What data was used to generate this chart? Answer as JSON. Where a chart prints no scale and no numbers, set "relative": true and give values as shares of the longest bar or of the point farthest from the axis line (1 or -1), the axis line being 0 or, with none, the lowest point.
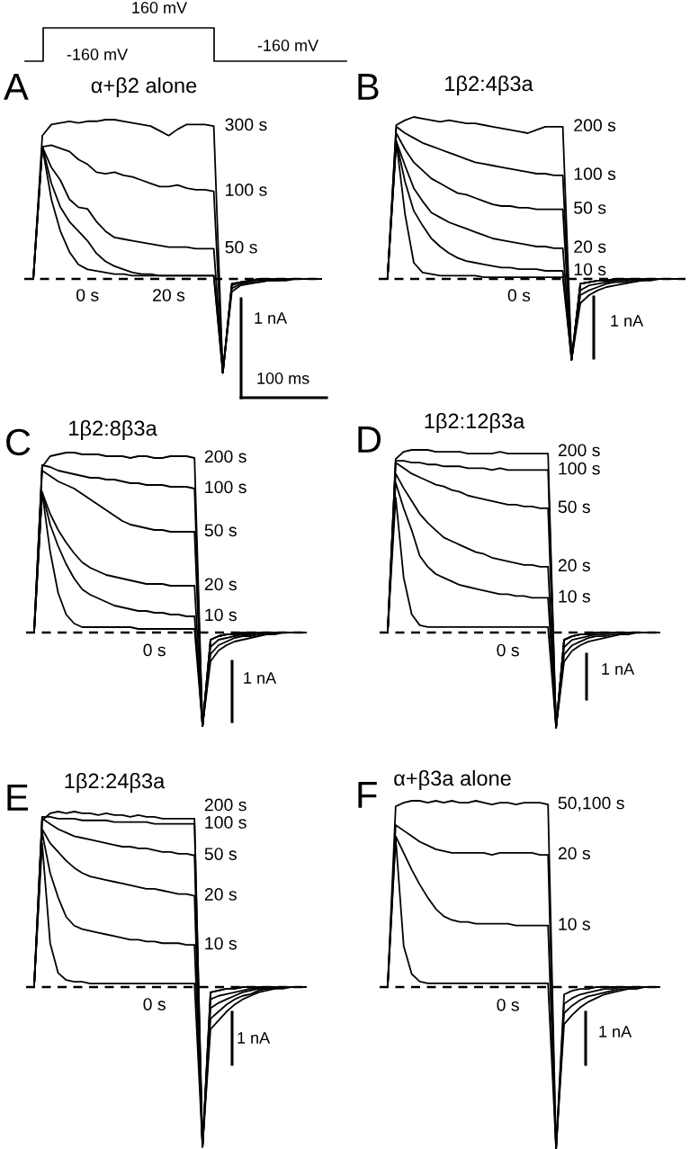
{
  "chart_data": [
    {
      "type": "line",
      "title": "α+β2 alone",
      "relative": true,
      "categories": [
        null,
        null,
        null,
        null,
        null,
        null,
        null,
        null,
        null,
        null,
        null,
        null,
        null,
        null,
        null,
        null,
        null,
        null,
        null,
        null,
        null,
        null,
        null,
        null,
        null,
        null,
        null,
        null,
        null,
        null,
        null,
        null,
        null,
        null
      ],
      "annotations": [
        "A",
        "160 mV",
        "-160 mV",
        "-160 mV",
        "1 nA",
        "100 ms"
      ],
      "ref_lines": [
        {
          "axis": "y",
          "value": 0,
          "line_style": "dashed",
          "color": "#000000"
        }
      ],
      "series": [
        {
          "name": "300 s",
          "color": "#000000",
          "values": [
            0,
            0,
            0.9,
            0.97,
            0.98,
            0.99,
            0.98,
            0.99,
            0.99,
            1.0,
            1.0,
            0.99,
            0.98,
            0.97,
            0.96,
            0.93,
            0.9,
            0.94,
            0.97,
            0.97,
            0.97,
            0.96,
            -0.59,
            -0.08,
            -0.04,
            -0.03,
            -0.02,
            -0.01,
            -0.01,
            -0.01,
            0,
            0,
            0,
            0
          ]
        },
        {
          "name": "100 s",
          "color": "#000000",
          "values": [
            0,
            0,
            0.83,
            0.84,
            0.82,
            0.8,
            0.75,
            0.72,
            0.67,
            0.66,
            0.67,
            0.65,
            0.64,
            0.62,
            0.6,
            0.58,
            0.58,
            0.59,
            0.57,
            0.56,
            0.56,
            0.55,
            -0.59,
            -0.06,
            -0.03,
            -0.02,
            -0.02,
            -0.01,
            -0.01,
            0,
            0,
            0,
            0,
            0
          ]
        },
        {
          "name": "50 s",
          "color": "#000000",
          "values": [
            0,
            0,
            0.83,
            0.7,
            0.62,
            0.5,
            0.45,
            0.44,
            0.36,
            0.3,
            0.26,
            0.25,
            0.24,
            0.23,
            0.22,
            0.21,
            0.2,
            0.2,
            0.2,
            0.19,
            0.19,
            0.19,
            -0.59,
            -0.04,
            -0.02,
            -0.01,
            -0.01,
            -0.01,
            0,
            0,
            0,
            0,
            0,
            0
          ]
        },
        {
          "name": "20 s",
          "color": "#000000",
          "values": [
            0,
            0,
            0.83,
            0.6,
            0.45,
            0.36,
            0.3,
            0.24,
            0.16,
            0.11,
            0.08,
            0.06,
            0.04,
            0.03,
            0.03,
            0.02,
            0.02,
            0.02,
            0.02,
            0.02,
            0.02,
            0.02,
            -0.59,
            -0.03,
            -0.02,
            -0.01,
            0,
            0,
            0,
            0,
            0,
            0,
            0,
            0
          ]
        },
        {
          "name": "0 s",
          "color": "#000000",
          "values": [
            0,
            0,
            0.83,
            0.5,
            0.3,
            0.17,
            0.09,
            0.06,
            0.05,
            0.04,
            0.03,
            0.03,
            0.02,
            0.02,
            0.02,
            0.02,
            0.02,
            0.02,
            0.02,
            0.02,
            0.02,
            0.02,
            -0.59,
            -0.03,
            -0.02,
            -0.01,
            0,
            0,
            0,
            0,
            0,
            0,
            0,
            0
          ]
        }
      ]
    },
    {
      "type": "line",
      "title": "1β2:4β3a",
      "relative": true,
      "categories": [
        null,
        null,
        null,
        null,
        null,
        null,
        null,
        null,
        null,
        null,
        null,
        null,
        null,
        null,
        null,
        null,
        null,
        null,
        null,
        null,
        null,
        null,
        null,
        null,
        null,
        null,
        null,
        null,
        null,
        null,
        null,
        null,
        null,
        null,
        null,
        null
      ],
      "annotations": [
        "B",
        "1 nA"
      ],
      "ref_lines": [
        {
          "axis": "y",
          "value": 0,
          "line_style": "dashed",
          "color": "#000000"
        }
      ],
      "series": [
        {
          "name": "200 s",
          "color": "#000000",
          "values": [
            0,
            0,
            0.95,
            0.98,
            1.0,
            0.99,
            0.98,
            0.97,
            0.98,
            0.97,
            0.96,
            0.96,
            0.95,
            0.94,
            0.93,
            0.92,
            0.91,
            0.9,
            0.92,
            0.94,
            0.94,
            0.94,
            -0.5,
            -0.15,
            -0.1,
            -0.07,
            -0.05,
            -0.04,
            -0.03,
            -0.02,
            -0.01,
            -0.01,
            0,
            0,
            0,
            0
          ]
        },
        {
          "name": "100 s",
          "color": "#000000",
          "values": [
            0,
            0,
            0.94,
            0.9,
            0.87,
            0.84,
            0.82,
            0.8,
            0.78,
            0.76,
            0.74,
            0.72,
            0.71,
            0.7,
            0.69,
            0.68,
            0.67,
            0.66,
            0.65,
            0.65,
            0.64,
            0.64,
            -0.5,
            -0.1,
            -0.07,
            -0.05,
            -0.03,
            -0.02,
            -0.02,
            -0.01,
            -0.01,
            0,
            0,
            0,
            0,
            0
          ]
        },
        {
          "name": "50 s",
          "color": "#000000",
          "values": [
            0,
            0,
            0.9,
            0.8,
            0.72,
            0.67,
            0.62,
            0.59,
            0.56,
            0.53,
            0.52,
            0.5,
            0.48,
            0.46,
            0.45,
            0.45,
            0.44,
            0.44,
            0.43,
            0.43,
            0.43,
            0.43,
            -0.5,
            -0.07,
            -0.04,
            -0.03,
            -0.02,
            -0.01,
            -0.01,
            0,
            0,
            0,
            0,
            0,
            0,
            0
          ]
        },
        {
          "name": "20 s",
          "color": "#000000",
          "values": [
            0,
            0,
            0.85,
            0.7,
            0.56,
            0.48,
            0.41,
            0.38,
            0.35,
            0.33,
            0.31,
            0.29,
            0.27,
            0.25,
            0.24,
            0.23,
            0.22,
            0.21,
            0.2,
            0.2,
            0.19,
            0.19,
            -0.5,
            -0.03,
            -0.02,
            -0.01,
            -0.01,
            0,
            0,
            0,
            0,
            0,
            0,
            0,
            0,
            0
          ]
        },
        {
          "name": "10 s",
          "color": "#000000",
          "values": [
            0,
            0,
            0.85,
            0.6,
            0.42,
            0.33,
            0.25,
            0.2,
            0.16,
            0.13,
            0.11,
            0.1,
            0.09,
            0.08,
            0.07,
            0.07,
            0.06,
            0.06,
            0.06,
            0.05,
            0.05,
            0.05,
            -0.5,
            -0.03,
            -0.02,
            -0.01,
            -0.01,
            0,
            0,
            0,
            0,
            0,
            0,
            0,
            0,
            0
          ]
        },
        {
          "name": "0 s",
          "color": "#000000",
          "values": [
            0,
            0,
            0.85,
            0.4,
            0.1,
            0.04,
            0.03,
            0.02,
            0.02,
            0.02,
            0.02,
            0.02,
            0.01,
            0.01,
            0.01,
            0.01,
            0.01,
            0.01,
            0.01,
            0.01,
            0.01,
            0.01,
            -0.5,
            -0.03,
            -0.02,
            -0.01,
            -0.01,
            0,
            0,
            0,
            0,
            0,
            0,
            0,
            0,
            0
          ]
        }
      ]
    },
    {
      "type": "line",
      "title": "1β2:8β3a",
      "relative": true,
      "categories": [
        null,
        null,
        null,
        null,
        null,
        null,
        null,
        null,
        null,
        null,
        null,
        null,
        null,
        null,
        null,
        null,
        null,
        null,
        null,
        null,
        null,
        null,
        null,
        null,
        null,
        null,
        null,
        null,
        null,
        null,
        null,
        null,
        null,
        null,
        null,
        null
      ],
      "annotations": [
        "C",
        "1 nA"
      ],
      "ref_lines": [
        {
          "axis": "y",
          "value": 0,
          "line_style": "dashed",
          "color": "#000000"
        }
      ],
      "series": [
        {
          "name": "200 s",
          "color": "#000000",
          "values": [
            0,
            0,
            0.92,
            0.98,
            0.99,
            1,
            1,
            0.99,
            0.99,
            0.99,
            0.98,
            0.98,
            0.98,
            0.97,
            0.98,
            0.98,
            0.97,
            0.97,
            0.98,
            0.98,
            0.98,
            0.97,
            -0.52,
            -0.16,
            -0.1,
            -0.07,
            -0.05,
            -0.04,
            -0.03,
            -0.02,
            -0.01,
            -0.01,
            0,
            0,
            0,
            0
          ]
        },
        {
          "name": "100 s",
          "color": "#000000",
          "values": [
            0,
            0,
            0.93,
            0.92,
            0.9,
            0.89,
            0.88,
            0.87,
            0.86,
            0.86,
            0.85,
            0.85,
            0.84,
            0.83,
            0.83,
            0.82,
            0.82,
            0.82,
            0.81,
            0.81,
            0.81,
            0.8,
            -0.52,
            -0.12,
            -0.07,
            -0.05,
            -0.03,
            -0.02,
            -0.02,
            -0.01,
            -0.01,
            0,
            0,
            0,
            0,
            0
          ]
        },
        {
          "name": "50 s",
          "color": "#000000",
          "values": [
            0,
            0,
            0.9,
            0.87,
            0.84,
            0.82,
            0.8,
            0.77,
            0.74,
            0.71,
            0.68,
            0.65,
            0.62,
            0.6,
            0.59,
            0.58,
            0.57,
            0.57,
            0.56,
            0.56,
            0.56,
            0.56,
            -0.52,
            -0.08,
            -0.04,
            -0.03,
            -0.02,
            -0.01,
            -0.01,
            0,
            0,
            0,
            0,
            0,
            0,
            0
          ]
        },
        {
          "name": "20 s",
          "color": "#000000",
          "values": [
            0,
            0,
            0.78,
            0.66,
            0.57,
            0.5,
            0.44,
            0.39,
            0.36,
            0.34,
            0.32,
            0.31,
            0.3,
            0.29,
            0.28,
            0.27,
            0.27,
            0.27,
            0.26,
            0.26,
            0.26,
            0.26,
            -0.52,
            -0.04,
            -0.02,
            -0.01,
            -0.01,
            0,
            0,
            0,
            0,
            0,
            0,
            0,
            0,
            0
          ]
        },
        {
          "name": "10 s",
          "color": "#000000",
          "values": [
            0,
            0,
            0.78,
            0.6,
            0.48,
            0.38,
            0.3,
            0.24,
            0.21,
            0.19,
            0.17,
            0.15,
            0.14,
            0.13,
            0.12,
            0.12,
            0.11,
            0.11,
            0.1,
            0.1,
            0.09,
            0.09,
            -0.52,
            -0.04,
            -0.02,
            -0.01,
            -0.01,
            0,
            0,
            0,
            0,
            0,
            0,
            0,
            0,
            0
          ]
        },
        {
          "name": "0 s",
          "color": "#000000",
          "values": [
            0,
            0,
            0.78,
            0.45,
            0.22,
            0.1,
            0.05,
            0.03,
            0.03,
            0.03,
            0.03,
            0.03,
            0.03,
            0.03,
            0.02,
            0.02,
            0.02,
            0.02,
            0.02,
            0.02,
            0.02,
            0.02,
            -0.52,
            -0.04,
            -0.02,
            -0.01,
            -0.01,
            0,
            0,
            0,
            0,
            0,
            0,
            0,
            0,
            0
          ]
        }
      ]
    },
    {
      "type": "line",
      "title": "1β2:12β3a",
      "relative": true,
      "categories": [
        null,
        null,
        null,
        null,
        null,
        null,
        null,
        null,
        null,
        null,
        null,
        null,
        null,
        null,
        null,
        null,
        null,
        null,
        null,
        null,
        null,
        null,
        null,
        null,
        null,
        null,
        null,
        null,
        null,
        null,
        null,
        null,
        null,
        null,
        null,
        null
      ],
      "annotations": [
        "D",
        "1 nA"
      ],
      "ref_lines": [
        {
          "axis": "y",
          "value": 0,
          "line_style": "dashed",
          "color": "#000000"
        }
      ],
      "series": [
        {
          "name": "200 s",
          "color": "#000000",
          "values": [
            0,
            0,
            0.95,
            0.99,
            1,
            1,
            1,
            0.99,
            0.99,
            0.99,
            0.99,
            0.98,
            0.98,
            0.98,
            0.98,
            0.99,
            0.98,
            0.98,
            0.98,
            0.98,
            0.98,
            0.98,
            -0.52,
            -0.16,
            -0.1,
            -0.07,
            -0.05,
            -0.04,
            -0.03,
            -0.02,
            -0.01,
            -0.01,
            0,
            0,
            0,
            0
          ]
        },
        {
          "name": "100 s",
          "color": "#000000",
          "values": [
            0,
            0,
            0.94,
            0.94,
            0.93,
            0.93,
            0.92,
            0.92,
            0.91,
            0.91,
            0.91,
            0.9,
            0.9,
            0.9,
            0.89,
            0.9,
            0.89,
            0.89,
            0.89,
            0.89,
            0.89,
            0.89,
            -0.52,
            -0.12,
            -0.07,
            -0.05,
            -0.03,
            -0.02,
            -0.02,
            -0.01,
            -0.01,
            0,
            0,
            0,
            0,
            0
          ]
        },
        {
          "name": "50 s",
          "color": "#000000",
          "values": [
            0,
            0,
            0.93,
            0.9,
            0.87,
            0.85,
            0.83,
            0.81,
            0.8,
            0.78,
            0.77,
            0.75,
            0.74,
            0.73,
            0.72,
            0.71,
            0.7,
            0.7,
            0.69,
            0.69,
            0.68,
            0.68,
            -0.52,
            -0.08,
            -0.04,
            -0.03,
            -0.02,
            -0.01,
            -0.01,
            0,
            0,
            0,
            0,
            0,
            0,
            0
          ]
        },
        {
          "name": "20 s",
          "color": "#000000",
          "values": [
            0,
            0,
            0.87,
            0.79,
            0.72,
            0.65,
            0.6,
            0.56,
            0.52,
            0.5,
            0.48,
            0.46,
            0.44,
            0.43,
            0.41,
            0.4,
            0.39,
            0.38,
            0.37,
            0.37,
            0.36,
            0.36,
            -0.52,
            -0.04,
            -0.02,
            -0.01,
            -0.01,
            0,
            0,
            0,
            0,
            0,
            0,
            0,
            0,
            0
          ]
        },
        {
          "name": "10 s",
          "color": "#000000",
          "values": [
            0,
            0,
            0.82,
            0.68,
            0.56,
            0.42,
            0.36,
            0.32,
            0.3,
            0.28,
            0.26,
            0.25,
            0.24,
            0.23,
            0.22,
            0.21,
            0.21,
            0.2,
            0.2,
            0.19,
            0.19,
            0.19,
            -0.52,
            -0.04,
            -0.02,
            -0.01,
            -0.01,
            0,
            0,
            0,
            0,
            0,
            0,
            0,
            0,
            0
          ]
        },
        {
          "name": "0 s",
          "color": "#000000",
          "values": [
            0,
            0,
            0.74,
            0.3,
            0.1,
            0.04,
            0.03,
            0.03,
            0.03,
            0.03,
            0.03,
            0.03,
            0.03,
            0.03,
            0.03,
            0.03,
            0.03,
            0.03,
            0.03,
            0.03,
            0.03,
            0.03,
            -0.52,
            -0.04,
            -0.02,
            -0.01,
            -0.01,
            0,
            0,
            0,
            0,
            0,
            0,
            0,
            0,
            0
          ]
        }
      ]
    },
    {
      "type": "line",
      "title": "1β2:24β3a",
      "relative": true,
      "categories": [
        null,
        null,
        null,
        null,
        null,
        null,
        null,
        null,
        null,
        null,
        null,
        null,
        null,
        null,
        null,
        null,
        null,
        null,
        null,
        null,
        null,
        null,
        null,
        null,
        null,
        null,
        null,
        null,
        null,
        null,
        null,
        null,
        null,
        null,
        null,
        null
      ],
      "annotations": [
        "E",
        "1 nA"
      ],
      "ref_lines": [
        {
          "axis": "y",
          "value": 0,
          "line_style": "dashed",
          "color": "#000000"
        }
      ],
      "series": [
        {
          "name": "200 s",
          "color": "#000000",
          "values": [
            0,
            0,
            0.95,
            0.99,
            1,
            0.99,
            1,
            0.99,
            0.99,
            0.98,
            0.99,
            0.98,
            0.98,
            0.97,
            0.98,
            0.97,
            0.97,
            0.96,
            0.96,
            0.96,
            0.96,
            0.96,
            -0.91,
            -0.24,
            -0.19,
            -0.14,
            -0.1,
            -0.07,
            -0.05,
            -0.03,
            -0.02,
            -0.01,
            -0.01,
            0,
            0,
            0
          ]
        },
        {
          "name": "100 s",
          "color": "#000000",
          "values": [
            0,
            0,
            0.97,
            0.97,
            0.96,
            0.96,
            0.96,
            0.95,
            0.95,
            0.95,
            0.95,
            0.94,
            0.94,
            0.94,
            0.94,
            0.94,
            0.93,
            0.93,
            0.93,
            0.93,
            0.93,
            0.93,
            -0.91,
            -0.18,
            -0.14,
            -0.1,
            -0.07,
            -0.05,
            -0.04,
            -0.02,
            -0.01,
            -0.01,
            0,
            0,
            0,
            0
          ]
        },
        {
          "name": "50 s",
          "color": "#000000",
          "values": [
            0,
            0,
            0.96,
            0.93,
            0.9,
            0.88,
            0.86,
            0.85,
            0.84,
            0.83,
            0.82,
            0.81,
            0.8,
            0.8,
            0.79,
            0.79,
            0.78,
            0.77,
            0.77,
            0.76,
            0.76,
            0.75,
            -0.91,
            -0.12,
            -0.09,
            -0.07,
            -0.05,
            -0.03,
            -0.02,
            -0.01,
            -0.01,
            0,
            0,
            0,
            0,
            0
          ]
        },
        {
          "name": "20 s",
          "color": "#000000",
          "values": [
            0,
            0,
            0.9,
            0.82,
            0.77,
            0.72,
            0.68,
            0.65,
            0.63,
            0.62,
            0.61,
            0.6,
            0.59,
            0.58,
            0.57,
            0.56,
            0.56,
            0.55,
            0.54,
            0.53,
            0.53,
            0.52,
            -0.91,
            -0.07,
            -0.05,
            -0.04,
            -0.03,
            -0.02,
            -0.01,
            -0.01,
            0,
            0,
            0,
            0,
            0,
            0
          ]
        },
        {
          "name": "10 s",
          "color": "#000000",
          "values": [
            0,
            0,
            0.88,
            0.65,
            0.51,
            0.4,
            0.35,
            0.33,
            0.32,
            0.31,
            0.3,
            0.29,
            0.28,
            0.27,
            0.27,
            0.26,
            0.26,
            0.25,
            0.25,
            0.25,
            0.24,
            0.24,
            -0.91,
            -0.03,
            -0.02,
            -0.01,
            -0.01,
            0,
            0,
            0,
            0,
            0,
            0,
            0,
            0,
            0
          ]
        },
        {
          "name": "0 s",
          "color": "#000000",
          "values": [
            0,
            0,
            0.82,
            0.25,
            0.08,
            0.04,
            0.03,
            0.03,
            0.02,
            0.02,
            0.02,
            0.02,
            0.02,
            0.02,
            0.02,
            0.02,
            0.02,
            0.02,
            0.02,
            0.02,
            0.02,
            0.02,
            -0.91,
            -0.03,
            -0.02,
            -0.01,
            -0.01,
            0,
            0,
            0,
            0,
            0,
            0,
            0,
            0,
            0
          ]
        }
      ]
    },
    {
      "type": "line",
      "title": "α+β3a alone",
      "relative": true,
      "categories": [
        null,
        null,
        null,
        null,
        null,
        null,
        null,
        null,
        null,
        null,
        null,
        null,
        null,
        null,
        null,
        null,
        null,
        null,
        null,
        null,
        null,
        null,
        null,
        null,
        null,
        null,
        null,
        null,
        null,
        null,
        null,
        null,
        null,
        null,
        null,
        null
      ],
      "annotations": [
        "F",
        "1 nA"
      ],
      "ref_lines": [
        {
          "axis": "y",
          "value": 0,
          "line_style": "dashed",
          "color": "#000000"
        }
      ],
      "series": [
        {
          "name": "50,100 s",
          "color": "#000000",
          "values": [
            0,
            0,
            0.97,
            0.99,
            1,
            1,
            0.99,
            1,
            0.99,
            1,
            0.99,
            0.99,
            1,
            0.99,
            0.98,
            0.99,
            0.99,
            0.98,
            0.99,
            0.99,
            0.99,
            0.98,
            -0.87,
            -0.2,
            -0.15,
            -0.11,
            -0.08,
            -0.06,
            -0.04,
            -0.03,
            -0.02,
            -0.01,
            -0.01,
            0,
            0,
            0
          ]
        },
        {
          "name": "20 s",
          "color": "#000000",
          "values": [
            0,
            0,
            0.87,
            0.84,
            0.81,
            0.78,
            0.76,
            0.74,
            0.73,
            0.72,
            0.72,
            0.72,
            0.72,
            0.72,
            0.71,
            0.72,
            0.72,
            0.72,
            0.72,
            0.72,
            0.71,
            0.71,
            -0.87,
            -0.14,
            -0.1,
            -0.07,
            -0.05,
            -0.04,
            -0.03,
            -0.02,
            -0.01,
            -0.01,
            0,
            0,
            0,
            0
          ]
        },
        {
          "name": "10 s",
          "color": "#000000",
          "values": [
            0,
            0,
            0.81,
            0.72,
            0.63,
            0.55,
            0.48,
            0.42,
            0.38,
            0.36,
            0.35,
            0.35,
            0.34,
            0.34,
            0.34,
            0.34,
            0.34,
            0.33,
            0.33,
            0.33,
            0.33,
            0.33,
            -0.87,
            -0.09,
            -0.06,
            -0.04,
            -0.03,
            -0.02,
            -0.01,
            -0.01,
            0,
            0,
            0,
            0,
            0,
            0
          ]
        },
        {
          "name": "0 s",
          "color": "#000000",
          "values": [
            0,
            0,
            0.8,
            0.22,
            0.07,
            0.03,
            0.02,
            0.02,
            0.02,
            0.02,
            0.02,
            0.02,
            0.02,
            0.02,
            0.02,
            0.02,
            0.02,
            0.02,
            0.02,
            0.02,
            0.02,
            0.02,
            -0.87,
            -0.04,
            -0.02,
            -0.01,
            -0.01,
            0,
            0,
            0,
            0,
            0,
            0,
            0,
            0,
            0
          ]
        }
      ]
    }
  ]
}
